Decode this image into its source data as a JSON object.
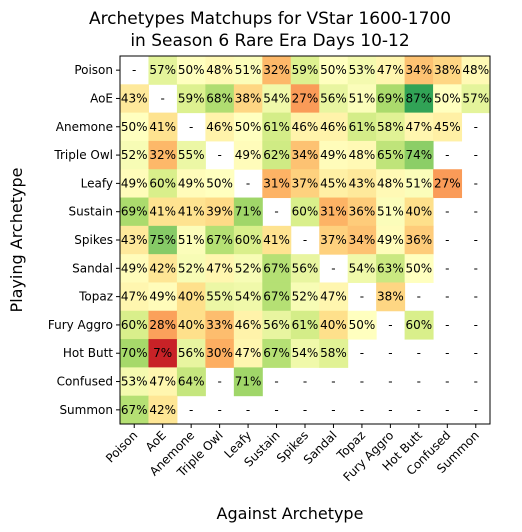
{
  "chart_data": {
    "type": "heatmap",
    "title_line1": "Archetypes Matchups for VStar 1600-1700",
    "title_line2": "in Season 6 Rare Era Days 10-12",
    "xlabel": "Against Archetype",
    "ylabel": "Playing Archetype",
    "rows": [
      "Poison",
      "AoE",
      "Anemone",
      "Triple Owl",
      "Leafy",
      "Sustain",
      "Spikes",
      "Sandal",
      "Topaz",
      "Fury Aggro",
      "Hot Butt",
      "Confused",
      "Summon"
    ],
    "cols": [
      "Poison",
      "AoE",
      "Anemone",
      "Triple Owl",
      "Leafy",
      "Sustain",
      "Spikes",
      "Sandal",
      "Topaz",
      "Fury Aggro",
      "Hot Butt",
      "Confused",
      "Summon"
    ],
    "values": [
      [
        null,
        57,
        50,
        48,
        51,
        32,
        59,
        50,
        53,
        47,
        34,
        38,
        48
      ],
      [
        43,
        null,
        59,
        68,
        38,
        54,
        27,
        56,
        51,
        69,
        87,
        50,
        57
      ],
      [
        50,
        41,
        null,
        46,
        50,
        61,
        46,
        46,
        61,
        58,
        47,
        45,
        null
      ],
      [
        52,
        32,
        55,
        null,
        49,
        62,
        34,
        49,
        48,
        65,
        74,
        null,
        null
      ],
      [
        49,
        60,
        49,
        50,
        null,
        31,
        37,
        45,
        43,
        48,
        51,
        27,
        null
      ],
      [
        69,
        41,
        41,
        39,
        71,
        null,
        60,
        31,
        36,
        51,
        40,
        null,
        null
      ],
      [
        43,
        75,
        51,
        67,
        60,
        41,
        null,
        37,
        34,
        49,
        36,
        null,
        null
      ],
      [
        49,
        42,
        52,
        47,
        52,
        67,
        56,
        null,
        54,
        63,
        50,
        null,
        null
      ],
      [
        47,
        49,
        40,
        55,
        54,
        67,
        52,
        47,
        null,
        38,
        null,
        null,
        null
      ],
      [
        60,
        28,
        40,
        33,
        46,
        56,
        61,
        40,
        50,
        null,
        60,
        null,
        null
      ],
      [
        70,
        7,
        56,
        30,
        47,
        67,
        54,
        58,
        null,
        null,
        null,
        null,
        null
      ],
      [
        53,
        47,
        64,
        null,
        71,
        null,
        null,
        null,
        null,
        null,
        null,
        null,
        null
      ],
      [
        67,
        42,
        null,
        null,
        null,
        null,
        null,
        null,
        null,
        null,
        null,
        null,
        null
      ]
    ],
    "missing_label": "-",
    "value_suffix": "%",
    "colormap": "RdYlGn",
    "vmin": 0,
    "vmax": 100
  }
}
